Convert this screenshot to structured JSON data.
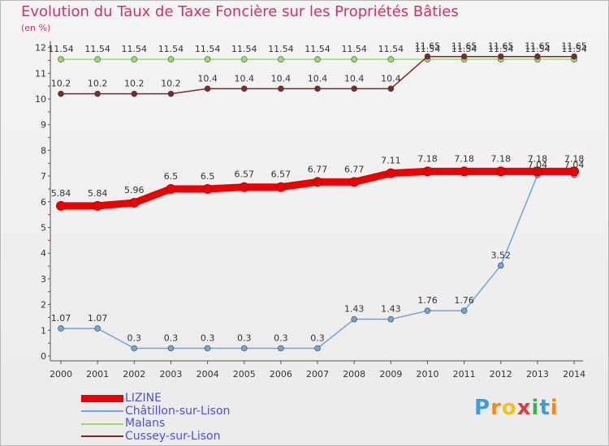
{
  "chart_data": {
    "type": "line",
    "title": "Evolution du Taux de Taxe Foncière sur les Propriétés Bâties",
    "subtitle": "(en %)",
    "xlabel": "",
    "ylabel": "",
    "categories": [
      "2000",
      "2001",
      "2002",
      "2003",
      "2004",
      "2005",
      "2006",
      "2007",
      "2008",
      "2009",
      "2010",
      "2011",
      "2012",
      "2013",
      "2014"
    ],
    "ylim": [
      0,
      12
    ],
    "yticks": [
      "0",
      "1",
      "2",
      "3",
      "4",
      "5",
      "6",
      "7",
      "8",
      "9",
      "10",
      "11",
      "12"
    ],
    "grid": false,
    "legend_position": "bottom-left",
    "series": [
      {
        "name": "LIZINE",
        "color": "#ee0000",
        "values": [
          5.84,
          5.84,
          5.96,
          6.5,
          6.5,
          6.57,
          6.57,
          6.77,
          6.77,
          7.11,
          7.18,
          7.18,
          7.18,
          7.18,
          7.18
        ],
        "labels": [
          "5.84",
          "5.84",
          "5.96",
          "6.5",
          "6.5",
          "6.57",
          "6.57",
          "6.77",
          "6.77",
          "7.11",
          "7.18",
          "7.18",
          "7.18",
          "7.18",
          "7.18"
        ]
      },
      {
        "name": "Châtillon-sur-Lison",
        "color": "#6fa5d8",
        "values": [
          1.07,
          1.07,
          0.3,
          0.3,
          0.3,
          0.3,
          0.3,
          0.3,
          1.43,
          1.43,
          1.76,
          1.76,
          3.52,
          7.04,
          7.04
        ],
        "labels": [
          "1.07",
          "1.07",
          "0.3",
          "0.3",
          "0.3",
          "0.3",
          "0.3",
          "0.3",
          "1.43",
          "1.43",
          "1.76",
          "1.76",
          "3.52",
          "7.04",
          "7.04"
        ]
      },
      {
        "name": "Malans",
        "color": "#99dd66",
        "values": [
          11.54,
          11.54,
          11.54,
          11.54,
          11.54,
          11.54,
          11.54,
          11.54,
          11.54,
          11.54,
          11.54,
          11.54,
          11.54,
          11.54,
          11.54
        ],
        "labels": [
          "11.54",
          "11.54",
          "11.54",
          "11.54",
          "11.54",
          "11.54",
          "11.54",
          "11.54",
          "11.54",
          "11.54",
          "11.54",
          "11.54",
          "11.54",
          "11.54",
          "11.54"
        ]
      },
      {
        "name": "Cussey-sur-Lison",
        "color": "#7a2a2a",
        "values": [
          10.2,
          10.2,
          10.2,
          10.2,
          10.4,
          10.4,
          10.4,
          10.4,
          10.4,
          10.4,
          11.65,
          11.65,
          11.65,
          11.65,
          11.65
        ],
        "labels": [
          "10.2",
          "10.2",
          "10.2",
          "10.2",
          "10.4",
          "10.4",
          "10.4",
          "10.4",
          "10.4",
          "10.4",
          "11.65",
          "11.65",
          "11.65",
          "11.65",
          "11.65"
        ]
      }
    ]
  },
  "logo": {
    "letters": [
      "P",
      "r",
      "o",
      "x",
      "i",
      "t",
      "i"
    ],
    "colors": [
      "#3f9be0",
      "#f08a1d",
      "#f0c21d",
      "#e03c3c",
      "#3fb34a",
      "#3f9be0",
      "#f08a1d"
    ]
  }
}
